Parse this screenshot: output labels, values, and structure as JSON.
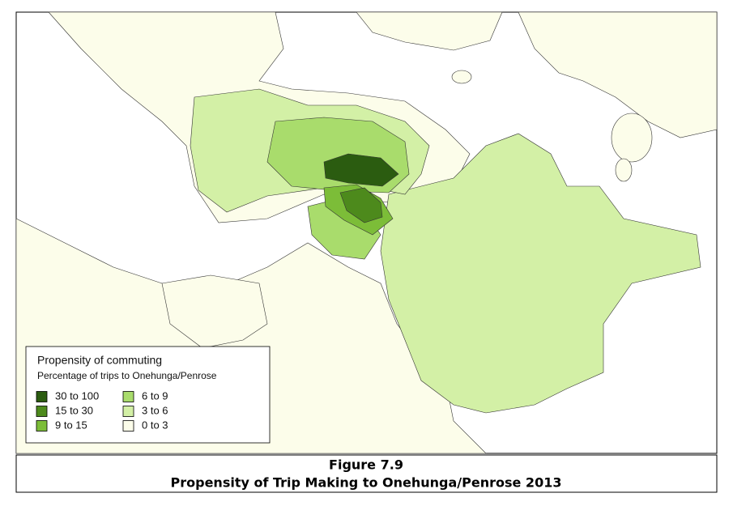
{
  "legend": {
    "title": "Propensity of commuting",
    "subtitle": "Percentage of trips to Onehunga/Penrose",
    "items": [
      {
        "label": "30 to 100",
        "color": "#2b5c10"
      },
      {
        "label": "15 to 30",
        "color": "#4d8a1c"
      },
      {
        "label": "9 to 15",
        "color": "#7cbd38"
      },
      {
        "label": "6 to 9",
        "color": "#a9dc6c"
      },
      {
        "label": "3 to 6",
        "color": "#d3f0a6"
      },
      {
        "label": "0 to 3",
        "color": "#fcfdea"
      }
    ]
  },
  "caption": {
    "figure": "Figure 7.9",
    "title": "Propensity of Trip Making to Onehunga/Penrose 2013"
  }
}
